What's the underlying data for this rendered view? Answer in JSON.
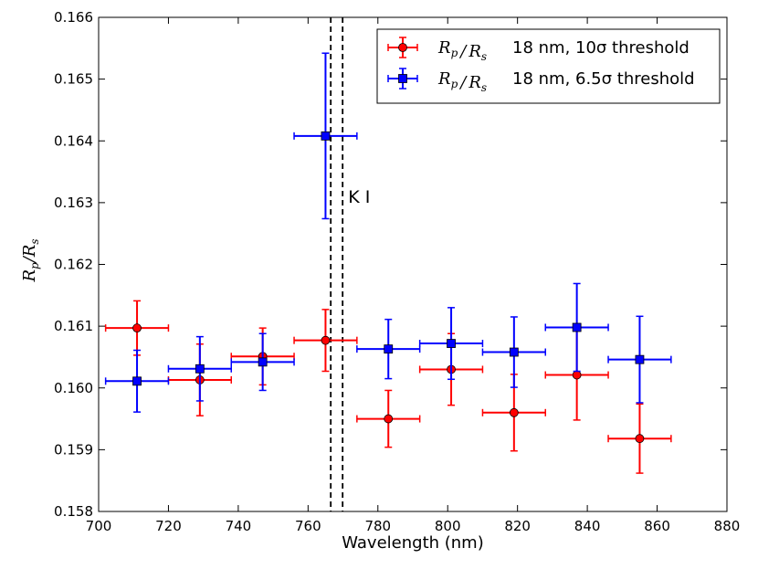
{
  "chart_data": {
    "type": "scatter",
    "title": "",
    "xlabel": "Wavelength (nm)",
    "ylabel": "R_p/R_s",
    "xlim": [
      700,
      880
    ],
    "ylim": [
      0.158,
      0.166
    ],
    "xticks": [
      "700",
      "720",
      "740",
      "760",
      "780",
      "800",
      "820",
      "840",
      "860",
      "880"
    ],
    "yticks": [
      "0.158",
      "0.159",
      "0.160",
      "0.161",
      "0.162",
      "0.163",
      "0.164",
      "0.165",
      "0.166"
    ],
    "legend_position": "top-right",
    "vlines": [
      766.5,
      769.9
    ],
    "annotation": {
      "text": "K I",
      "x": 771.5,
      "y": 0.1631
    },
    "series": [
      {
        "name": "18 nm, 10σ threshold",
        "legend_math": "R_p / R_s",
        "legend_label": "18 nm, 10σ threshold",
        "color": "#ff0000",
        "marker": "circle",
        "points": [
          {
            "x": 711,
            "y": 0.16097,
            "xerr": 9,
            "yerr": 0.00044
          },
          {
            "x": 729,
            "y": 0.16013,
            "xerr": 9,
            "yerr": 0.00058
          },
          {
            "x": 747,
            "y": 0.16051,
            "xerr": 9,
            "yerr": 0.00046
          },
          {
            "x": 765,
            "y": 0.16077,
            "xerr": 9,
            "yerr": 0.0005
          },
          {
            "x": 783,
            "y": 0.1595,
            "xerr": 9,
            "yerr": 0.00046
          },
          {
            "x": 801,
            "y": 0.1603,
            "xerr": 9,
            "yerr": 0.00058
          },
          {
            "x": 819,
            "y": 0.1596,
            "xerr": 9,
            "yerr": 0.00062
          },
          {
            "x": 837,
            "y": 0.16021,
            "xerr": 9,
            "yerr": 0.00073
          },
          {
            "x": 855,
            "y": 0.15918,
            "xerr": 9,
            "yerr": 0.00056
          }
        ]
      },
      {
        "name": "18 nm, 6.5σ threshold",
        "legend_math": "R_p / R_s",
        "legend_label": "18 nm, 6.5σ threshold",
        "color": "#0000ff",
        "marker": "square",
        "points": [
          {
            "x": 711,
            "y": 0.16011,
            "xerr": 9,
            "yerr": 0.0005
          },
          {
            "x": 729,
            "y": 0.16031,
            "xerr": 9,
            "yerr": 0.00052
          },
          {
            "x": 747,
            "y": 0.16042,
            "xerr": 9,
            "yerr": 0.00046
          },
          {
            "x": 765,
            "y": 0.16408,
            "xerr": 9,
            "yerr": 0.00134
          },
          {
            "x": 783,
            "y": 0.16063,
            "xerr": 9,
            "yerr": 0.00048
          },
          {
            "x": 801,
            "y": 0.16072,
            "xerr": 9,
            "yerr": 0.00058
          },
          {
            "x": 819,
            "y": 0.16058,
            "xerr": 9,
            "yerr": 0.00057
          },
          {
            "x": 837,
            "y": 0.16098,
            "xerr": 9,
            "yerr": 0.00071
          },
          {
            "x": 855,
            "y": 0.16046,
            "xerr": 9,
            "yerr": 0.0007
          }
        ]
      }
    ]
  }
}
